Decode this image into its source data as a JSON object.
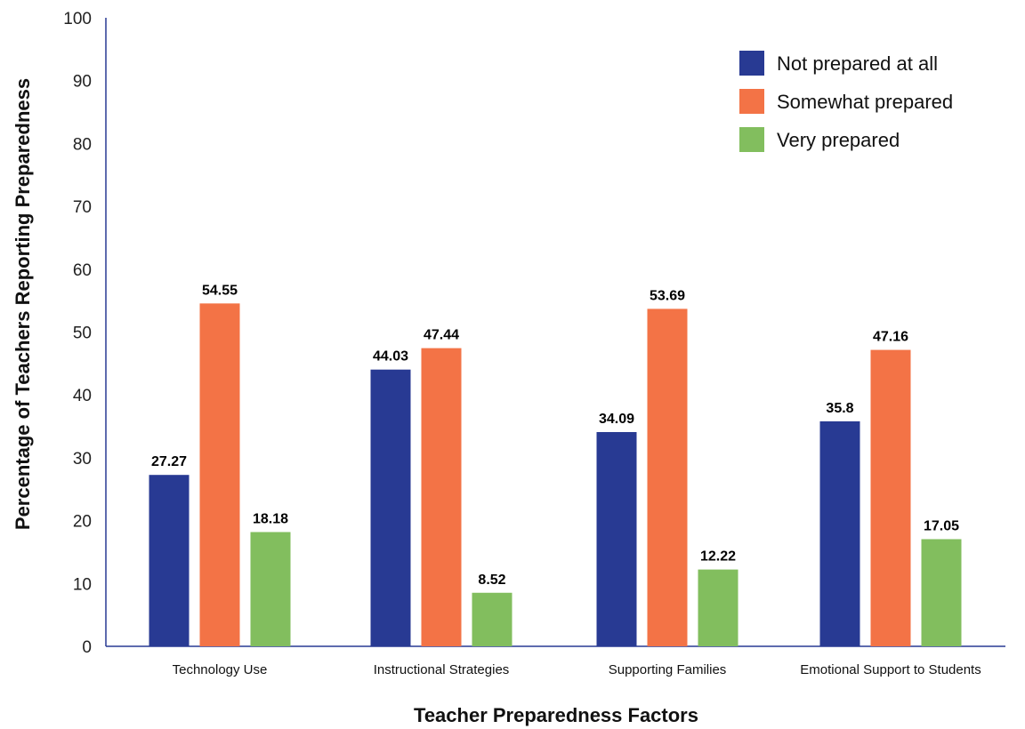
{
  "chart_data": {
    "type": "bar",
    "title": "",
    "xlabel": "Teacher Preparedness Factors",
    "ylabel": "Percentage of Teachers Reporting Preparedness",
    "ylim": [
      0,
      100
    ],
    "yticks": [
      0,
      10,
      20,
      30,
      40,
      50,
      60,
      70,
      80,
      90,
      100
    ],
    "grid": false,
    "legend_position": "top-right",
    "categories": [
      "Technology Use",
      "Instructional Strategies",
      "Supporting Families",
      "Emotional Support to Students"
    ],
    "series": [
      {
        "name": "Not prepared at all",
        "color": "#283a93",
        "values": [
          27.27,
          44.03,
          34.09,
          35.8
        ]
      },
      {
        "name": "Somewhat prepared",
        "color": "#f37346",
        "values": [
          54.55,
          47.44,
          53.69,
          47.16
        ]
      },
      {
        "name": "Very prepared",
        "color": "#82be5e",
        "values": [
          18.18,
          8.52,
          12.22,
          17.05
        ]
      }
    ]
  }
}
